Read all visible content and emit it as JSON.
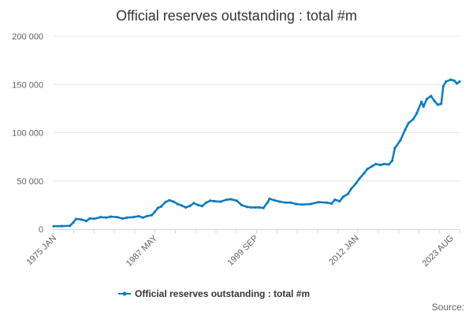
{
  "chart_data": {
    "type": "line",
    "title": "Official reserves outstanding : total #m",
    "series": [
      {
        "name": "Official reserves outstanding : total #m",
        "color": "#0a7bbf",
        "points": [
          [
            "1975-01",
            3000
          ],
          [
            "1976-01",
            3200
          ],
          [
            "1977-01",
            3500
          ],
          [
            "1977-06",
            7000
          ],
          [
            "1977-10",
            10500
          ],
          [
            "1978-06",
            10000
          ],
          [
            "1979-01",
            8500
          ],
          [
            "1979-06",
            11000
          ],
          [
            "1980-01",
            10800
          ],
          [
            "1980-10",
            12500
          ],
          [
            "1981-06",
            12000
          ],
          [
            "1982-01",
            13000
          ],
          [
            "1982-10",
            12500
          ],
          [
            "1983-06",
            11000
          ],
          [
            "1984-01",
            12000
          ],
          [
            "1984-10",
            12500
          ],
          [
            "1985-06",
            13500
          ],
          [
            "1985-12",
            12000
          ],
          [
            "1986-06",
            13500
          ],
          [
            "1987-01",
            14500
          ],
          [
            "1987-05",
            17500
          ],
          [
            "1987-10",
            22000
          ],
          [
            "1988-03",
            23500
          ],
          [
            "1988-09",
            28000
          ],
          [
            "1989-03",
            30000
          ],
          [
            "1989-09",
            28500
          ],
          [
            "1990-03",
            26000
          ],
          [
            "1990-09",
            24500
          ],
          [
            "1991-03",
            22500
          ],
          [
            "1991-09",
            24000
          ],
          [
            "1992-03",
            27000
          ],
          [
            "1992-09",
            25000
          ],
          [
            "1993-03",
            24000
          ],
          [
            "1993-09",
            27500
          ],
          [
            "1994-03",
            29500
          ],
          [
            "1994-09",
            29000
          ],
          [
            "1995-06",
            28500
          ],
          [
            "1996-03",
            30500
          ],
          [
            "1996-09",
            31000
          ],
          [
            "1997-06",
            29500
          ],
          [
            "1998-01",
            25000
          ],
          [
            "1998-09",
            23000
          ],
          [
            "1999-03",
            22500
          ],
          [
            "1999-09",
            22500
          ],
          [
            "2000-03",
            22500
          ],
          [
            "2000-09",
            22000
          ],
          [
            "2001-03",
            27500
          ],
          [
            "2001-06",
            31500
          ],
          [
            "2002-01",
            30000
          ],
          [
            "2002-09",
            28500
          ],
          [
            "2003-06",
            27500
          ],
          [
            "2004-01",
            27500
          ],
          [
            "2004-09",
            26000
          ],
          [
            "2005-06",
            25500
          ],
          [
            "2006-06",
            26000
          ],
          [
            "2007-06",
            28000
          ],
          [
            "2008-06",
            27500
          ],
          [
            "2009-01",
            26500
          ],
          [
            "2009-06",
            30500
          ],
          [
            "2010-01",
            29000
          ],
          [
            "2010-06",
            33500
          ],
          [
            "2011-01",
            36500
          ],
          [
            "2011-06",
            42000
          ],
          [
            "2012-01",
            47500
          ],
          [
            "2012-06",
            52500
          ],
          [
            "2013-01",
            58000
          ],
          [
            "2013-06",
            62500
          ],
          [
            "2014-01",
            65500
          ],
          [
            "2014-06",
            67500
          ],
          [
            "2015-01",
            66500
          ],
          [
            "2015-06",
            67500
          ],
          [
            "2016-01",
            67000
          ],
          [
            "2016-06",
            71000
          ],
          [
            "2016-10",
            84000
          ],
          [
            "2017-06",
            92000
          ],
          [
            "2018-01",
            103000
          ],
          [
            "2018-06",
            110000
          ],
          [
            "2019-01",
            114000
          ],
          [
            "2019-06",
            120000
          ],
          [
            "2020-01",
            132000
          ],
          [
            "2020-04",
            127000
          ],
          [
            "2020-09",
            135000
          ],
          [
            "2021-03",
            138000
          ],
          [
            "2021-08",
            133000
          ],
          [
            "2022-01",
            129000
          ],
          [
            "2022-06",
            130000
          ],
          [
            "2022-09",
            148000
          ],
          [
            "2023-01",
            153000
          ],
          [
            "2023-08",
            155000
          ],
          [
            "2024-01",
            154000
          ],
          [
            "2024-05",
            151000
          ],
          [
            "2024-09",
            153000
          ]
        ]
      }
    ],
    "y_ticks": [
      "0",
      "50 000",
      "100 000",
      "150 000",
      "200 000"
    ],
    "ylim": [
      0,
      200000
    ],
    "x_ticks": [
      "1975 JAN",
      "1987 MAY",
      "1999 SEP",
      "2012 JAN",
      "2023 AUG"
    ],
    "x_tick_dates": [
      "1975-01",
      "1987-05",
      "1999-09",
      "2012-01",
      "2023-08"
    ],
    "xlim": [
      "1975-01",
      "2024-09"
    ],
    "grid": true,
    "legend_position": "bottom",
    "source_label": "Source:"
  }
}
